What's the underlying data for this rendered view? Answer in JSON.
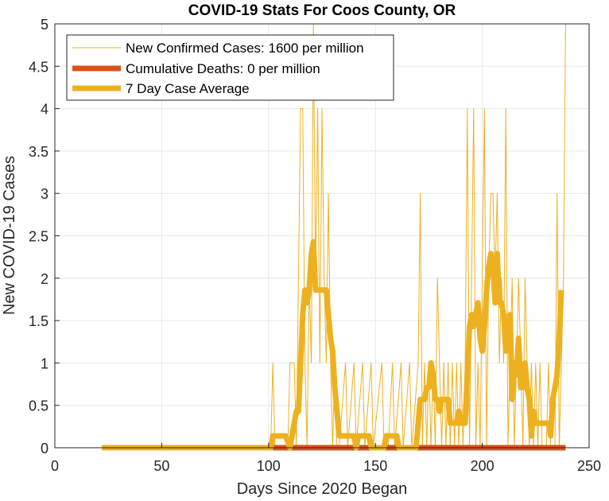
{
  "chart_data": {
    "type": "line",
    "title": "COVID-19 Stats For Coos County, OR",
    "xlabel": "Days Since 2020 Began",
    "ylabel": "New COVID-19 Cases",
    "xlim": [
      0,
      250
    ],
    "ylim": [
      0,
      5
    ],
    "xticks": [
      0,
      50,
      100,
      150,
      200,
      250
    ],
    "yticks": [
      0,
      0.5,
      1,
      1.5,
      2,
      2.5,
      3,
      3.5,
      4,
      4.5,
      5
    ],
    "xtick_labels": [
      "0",
      "50",
      "100",
      "150",
      "200",
      "250"
    ],
    "ytick_labels": [
      "0",
      "0.5",
      "1",
      "1.5",
      "2",
      "2.5",
      "3",
      "3.5",
      "4",
      "4.5",
      "5"
    ],
    "grid": true,
    "legend_position": "top-left",
    "series": [
      {
        "name": "New Confirmed Cases: 1600 per million",
        "color": "#EDB120",
        "line_style": "thin",
        "points": [
          [
            22,
            0
          ],
          [
            100,
            0
          ],
          [
            101,
            0
          ],
          [
            102,
            1
          ],
          [
            103,
            0
          ],
          [
            109,
            0
          ],
          [
            110,
            1
          ],
          [
            112,
            1
          ],
          [
            113,
            0
          ],
          [
            114,
            2
          ],
          [
            115,
            4
          ],
          [
            116,
            4
          ],
          [
            117,
            1
          ],
          [
            118,
            0
          ],
          [
            119,
            2
          ],
          [
            120,
            1
          ],
          [
            121,
            5
          ],
          [
            122,
            2
          ],
          [
            123,
            4
          ],
          [
            124,
            1
          ],
          [
            125,
            4
          ],
          [
            126,
            2
          ],
          [
            127,
            1
          ],
          [
            128,
            3
          ],
          [
            129,
            1
          ],
          [
            130,
            0
          ],
          [
            131,
            1
          ],
          [
            132,
            0
          ],
          [
            133,
            0
          ],
          [
            136,
            1
          ],
          [
            137,
            0
          ],
          [
            140,
            1
          ],
          [
            141,
            0
          ],
          [
            144,
            1
          ],
          [
            145,
            0
          ],
          [
            148,
            1
          ],
          [
            149,
            0
          ],
          [
            153,
            1
          ],
          [
            154,
            0
          ],
          [
            156,
            0
          ],
          [
            158,
            1
          ],
          [
            159,
            0
          ],
          [
            162,
            1
          ],
          [
            163,
            0
          ],
          [
            166,
            1
          ],
          [
            167,
            0
          ],
          [
            170,
            1
          ],
          [
            171,
            3
          ],
          [
            172,
            0
          ],
          [
            173,
            1
          ],
          [
            174,
            0
          ],
          [
            175,
            1
          ],
          [
            176,
            0
          ],
          [
            177,
            1
          ],
          [
            178,
            0
          ],
          [
            179,
            2
          ],
          [
            180,
            1
          ],
          [
            181,
            0
          ],
          [
            182,
            1
          ],
          [
            183,
            0
          ],
          [
            184,
            1
          ],
          [
            185,
            0
          ],
          [
            186,
            1
          ],
          [
            187,
            0
          ],
          [
            188,
            1
          ],
          [
            189,
            0
          ],
          [
            190,
            1
          ],
          [
            191,
            0
          ],
          [
            192,
            1
          ],
          [
            193,
            4
          ],
          [
            194,
            0
          ],
          [
            195,
            2
          ],
          [
            196,
            4
          ],
          [
            197,
            0
          ],
          [
            198,
            1
          ],
          [
            199,
            0
          ],
          [
            200,
            2
          ],
          [
            201,
            4
          ],
          [
            202,
            0
          ],
          [
            203,
            2
          ],
          [
            204,
            3
          ],
          [
            205,
            3
          ],
          [
            206,
            2
          ],
          [
            207,
            3
          ],
          [
            208,
            1
          ],
          [
            209,
            2
          ],
          [
            210,
            1
          ],
          [
            211,
            4
          ],
          [
            212,
            0
          ],
          [
            213,
            1
          ],
          [
            214,
            2
          ],
          [
            215,
            0
          ],
          [
            216,
            1
          ],
          [
            217,
            2
          ],
          [
            218,
            1
          ],
          [
            219,
            0
          ],
          [
            220,
            2
          ],
          [
            221,
            1
          ],
          [
            222,
            0
          ],
          [
            223,
            1
          ],
          [
            224,
            0
          ],
          [
            225,
            1
          ],
          [
            226,
            0
          ],
          [
            227,
            1
          ],
          [
            228,
            0
          ],
          [
            230,
            0
          ],
          [
            231,
            1
          ],
          [
            232,
            0
          ],
          [
            234,
            0
          ],
          [
            235,
            3
          ],
          [
            236,
            0
          ],
          [
            237,
            1
          ],
          [
            238,
            2
          ],
          [
            239,
            5
          ]
        ]
      },
      {
        "name": "Cumulative Deaths: 0 per million",
        "color": "#D95319",
        "line_style": "thick",
        "points": [
          [
            102,
            0
          ],
          [
            239,
            0
          ]
        ]
      },
      {
        "name": "7 Day Case Average",
        "color": "#EDB120",
        "line_style": "thick",
        "points": [
          [
            22,
            0
          ],
          [
            101,
            0
          ],
          [
            102,
            0.14
          ],
          [
            108,
            0.14
          ],
          [
            110,
            0
          ],
          [
            112,
            0.29
          ],
          [
            113,
            0.43
          ],
          [
            114,
            0.43
          ],
          [
            115,
            1
          ],
          [
            116,
            1.57
          ],
          [
            117,
            1.86
          ],
          [
            118,
            1.71
          ],
          [
            119,
            1.86
          ],
          [
            120,
            2.29
          ],
          [
            121,
            2.43
          ],
          [
            122,
            1.86
          ],
          [
            123,
            1.86
          ],
          [
            127,
            1.86
          ],
          [
            128,
            1.57
          ],
          [
            129,
            1.29
          ],
          [
            130,
            1.14
          ],
          [
            131,
            0.71
          ],
          [
            132,
            0.43
          ],
          [
            133,
            0.14
          ],
          [
            140,
            0.14
          ],
          [
            141,
            0
          ],
          [
            142,
            0.14
          ],
          [
            147,
            0.14
          ],
          [
            148,
            0
          ],
          [
            154,
            0
          ],
          [
            155,
            0.14
          ],
          [
            160,
            0.14
          ],
          [
            161,
            0
          ],
          [
            169,
            0
          ],
          [
            171,
            0.57
          ],
          [
            173,
            0.57
          ],
          [
            174,
            0.71
          ],
          [
            175,
            0.71
          ],
          [
            176,
            1
          ],
          [
            177,
            0.86
          ],
          [
            178,
            0.57
          ],
          [
            179,
            0.57
          ],
          [
            180,
            0.43
          ],
          [
            181,
            0.57
          ],
          [
            184,
            0.57
          ],
          [
            185,
            0.29
          ],
          [
            188,
            0.29
          ],
          [
            189,
            0.43
          ],
          [
            190,
            0.29
          ],
          [
            192,
            0.29
          ],
          [
            193,
            0.86
          ],
          [
            194,
            1.43
          ],
          [
            195,
            1.57
          ],
          [
            196,
            1.43
          ],
          [
            197,
            1.57
          ],
          [
            198,
            1.71
          ],
          [
            199,
            1.29
          ],
          [
            200,
            1.14
          ],
          [
            201,
            1.43
          ],
          [
            202,
            1.86
          ],
          [
            203,
            2.14
          ],
          [
            204,
            2.29
          ],
          [
            205,
            2.14
          ],
          [
            206,
            1.71
          ],
          [
            207,
            2.29
          ],
          [
            208,
            1.71
          ],
          [
            209,
            1.71
          ],
          [
            210,
            1.57
          ],
          [
            211,
            1.14
          ],
          [
            212,
            1.43
          ],
          [
            213,
            1.57
          ],
          [
            214,
            0.57
          ],
          [
            215,
            1
          ],
          [
            216,
            0.86
          ],
          [
            217,
            1.29
          ],
          [
            218,
            0.71
          ],
          [
            219,
            0.71
          ],
          [
            220,
            1
          ],
          [
            221,
            0.71
          ],
          [
            222,
            0.57
          ],
          [
            223,
            0.14
          ],
          [
            224,
            0.43
          ],
          [
            225,
            0.29
          ],
          [
            231,
            0.29
          ],
          [
            232,
            0.14
          ],
          [
            233,
            0.57
          ],
          [
            234,
            0.71
          ],
          [
            235,
            0.86
          ],
          [
            236,
            1.29
          ],
          [
            237,
            1.86
          ]
        ]
      }
    ]
  }
}
